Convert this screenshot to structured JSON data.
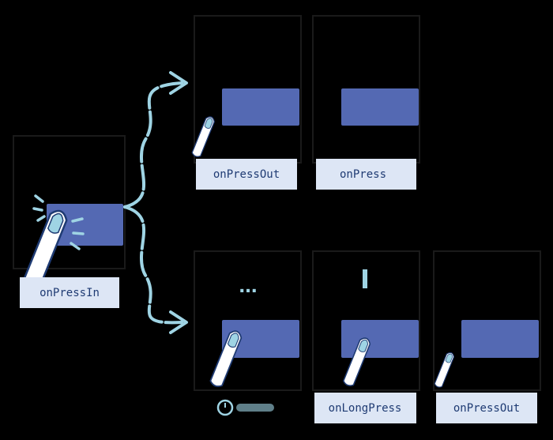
{
  "labels": {
    "press_in": "onPressIn",
    "press_out_top": "onPressOut",
    "press": "onPress",
    "long_press": "onLongPress",
    "press_out_bottom": "onPressOut"
  },
  "ellipsis": "...",
  "icons": [
    "finger-icon",
    "tap-ripple-icon",
    "timer-icon",
    "arrow-icon"
  ],
  "colors": {
    "background": "#000000",
    "button": "#5469b3",
    "label_bg": "#dde6f5",
    "label_text": "#1f3b73",
    "arrow": "#9fd4e4",
    "finger_fill": "#ffffff",
    "finger_nail": "#9fd4e4",
    "finger_outline": "#1f3b73"
  }
}
